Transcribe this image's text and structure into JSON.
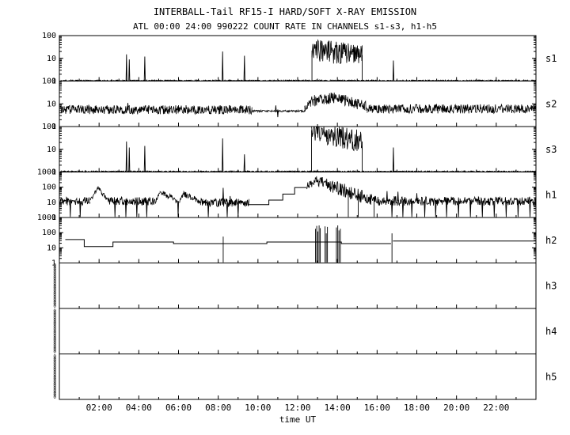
{
  "title": "INTERBALL-Tail RF15-I HARD/SOFT X-RAY EMISSION",
  "subtitle": "ATL 00:00 24:00 990222  COUNT RATE IN CHANNELS s1-s3, h1-h5",
  "xlabel": "time UT",
  "chart_data": {
    "type": "line",
    "x_range_hours": [
      0,
      24
    ],
    "x_tick_hours": [
      2,
      4,
      6,
      8,
      10,
      12,
      14,
      16,
      18,
      20,
      22
    ],
    "x_tick_labels": [
      "02:00",
      "04:00",
      "06:00",
      "08:00",
      "10:00",
      "12:00",
      "14:00",
      "16:00",
      "18:00",
      "20:00",
      "22:00"
    ],
    "grid": false,
    "legend": "channel labels on right side",
    "panels": [
      {
        "id": "s1",
        "label": "s1",
        "ylim": [
          1,
          100
        ],
        "yticks": [
          100,
          10,
          1
        ],
        "elements": [
          {
            "type": "noisy",
            "t0": 0.05,
            "t1": 24,
            "level": 1.05,
            "dex": 0.03
          },
          {
            "type": "spike",
            "t": 3.38,
            "base": 1.05,
            "peak": 15
          },
          {
            "type": "spike",
            "t": 3.52,
            "base": 1.05,
            "peak": 9
          },
          {
            "type": "spike",
            "t": 4.3,
            "base": 1.05,
            "peak": 12
          },
          {
            "type": "spike",
            "t": 8.22,
            "base": 1.05,
            "peak": 20
          },
          {
            "type": "spike",
            "t": 9.32,
            "base": 1.05,
            "peak": 13
          },
          {
            "type": "vline",
            "t": 12.72,
            "y0": 1.05,
            "y1": 22
          },
          {
            "type": "ramp",
            "t0": 12.72,
            "t1": 15.25,
            "y0": 22,
            "y1": 14,
            "dex": 0.5
          },
          {
            "type": "vline",
            "t": 15.25,
            "y0": 1.05,
            "y1": 14
          },
          {
            "type": "spike",
            "t": 16.82,
            "base": 1.05,
            "peak": 8
          }
        ]
      },
      {
        "id": "s2",
        "label": "s2",
        "ylim": [
          1,
          100
        ],
        "yticks": [
          100,
          10,
          1
        ],
        "elements": [
          {
            "type": "noisy",
            "t0": 0,
            "t1": 9.7,
            "level": 5.5,
            "dex": 0.2
          },
          {
            "type": "spike",
            "t": 3.45,
            "base": 5.5,
            "peak": 11
          },
          {
            "type": "noisy",
            "t0": 9.7,
            "t1": 12.35,
            "level": 4.8,
            "dex": 0.04
          },
          {
            "type": "spike",
            "t": 10.9,
            "base": 4.8,
            "peak": 8.5
          },
          {
            "type": "spike",
            "t": 11.0,
            "base": 4.8,
            "peak": 2.6
          },
          {
            "type": "ramp",
            "t0": 12.35,
            "t1": 12.65,
            "y0": 6,
            "y1": 13,
            "dex": 0.15
          },
          {
            "type": "ramp",
            "t0": 12.65,
            "t1": 13.9,
            "y0": 13,
            "y1": 19,
            "dex": 0.25
          },
          {
            "type": "ramp",
            "t0": 13.9,
            "t1": 15.5,
            "y0": 19,
            "y1": 7,
            "dex": 0.25
          },
          {
            "type": "noisy",
            "t0": 15.5,
            "t1": 24,
            "level": 6,
            "dex": 0.2
          }
        ]
      },
      {
        "id": "s3",
        "label": "s3",
        "ylim": [
          1,
          100
        ],
        "yticks": [
          100,
          10,
          1
        ],
        "elements": [
          {
            "type": "noisy",
            "t0": 0.05,
            "t1": 24,
            "level": 1.05,
            "dex": 0.03
          },
          {
            "type": "spike",
            "t": 3.38,
            "base": 1.05,
            "peak": 22
          },
          {
            "type": "spike",
            "t": 3.52,
            "base": 1.05,
            "peak": 12
          },
          {
            "type": "spike",
            "t": 4.3,
            "base": 1.05,
            "peak": 14
          },
          {
            "type": "spike",
            "t": 8.22,
            "base": 1.05,
            "peak": 30
          },
          {
            "type": "spike",
            "t": 9.32,
            "base": 1.05,
            "peak": 6
          },
          {
            "type": "vline",
            "t": 12.7,
            "y0": 1.05,
            "y1": 70
          },
          {
            "type": "ramp",
            "t0": 12.7,
            "t1": 13.5,
            "y0": 70,
            "y1": 40,
            "dex": 0.45
          },
          {
            "type": "ramp",
            "t0": 13.5,
            "t1": 15.25,
            "y0": 40,
            "y1": 22,
            "dex": 0.5
          },
          {
            "type": "vline",
            "t": 15.25,
            "y0": 1.05,
            "y1": 22
          },
          {
            "type": "spike",
            "t": 16.82,
            "base": 1.05,
            "peak": 12
          }
        ]
      },
      {
        "id": "h1",
        "label": "h1",
        "ylim": [
          1,
          1000
        ],
        "yticks": [
          1000,
          100,
          10,
          1
        ],
        "elements": [
          {
            "type": "noisy",
            "t0": 0,
            "t1": 1.55,
            "level": 12,
            "dex": 0.28
          },
          {
            "type": "spike",
            "t": 0.55,
            "base": 12,
            "peak": 1.1
          },
          {
            "type": "spike",
            "t": 1.05,
            "base": 12,
            "peak": 1.1
          },
          {
            "type": "ramp",
            "t0": 1.55,
            "t1": 1.95,
            "y0": 14,
            "y1": 95,
            "dex": 0.15
          },
          {
            "type": "ramp",
            "t0": 1.95,
            "t1": 2.45,
            "y0": 95,
            "y1": 14,
            "dex": 0.2
          },
          {
            "type": "noisy",
            "t0": 2.45,
            "t1": 4.85,
            "level": 12,
            "dex": 0.28
          },
          {
            "type": "spike",
            "t": 2.8,
            "base": 12,
            "peak": 1.1
          },
          {
            "type": "spike",
            "t": 3.35,
            "base": 12,
            "peak": 1.1
          },
          {
            "type": "spike",
            "t": 3.9,
            "base": 12,
            "peak": 1.1
          },
          {
            "type": "spike",
            "t": 4.4,
            "base": 12,
            "peak": 1.1
          },
          {
            "type": "ramp",
            "t0": 4.85,
            "t1": 5.05,
            "y0": 12,
            "y1": 48,
            "dex": 0.12
          },
          {
            "type": "ramp",
            "t0": 5.05,
            "t1": 5.95,
            "y0": 48,
            "y1": 13,
            "dex": 0.2
          },
          {
            "type": "spike",
            "t": 5.98,
            "base": 12,
            "peak": 1.1
          },
          {
            "type": "ramp",
            "t0": 6.05,
            "t1": 6.25,
            "y0": 12,
            "y1": 36,
            "dex": 0.12
          },
          {
            "type": "ramp",
            "t0": 6.25,
            "t1": 7.1,
            "y0": 36,
            "y1": 11,
            "dex": 0.2
          },
          {
            "type": "noisy",
            "t0": 7.1,
            "t1": 9.55,
            "level": 9.5,
            "dex": 0.28
          },
          {
            "type": "spike",
            "t": 7.5,
            "base": 9.5,
            "peak": 1.1
          },
          {
            "type": "spike",
            "t": 8.25,
            "base": 9.5,
            "peak": 90
          },
          {
            "type": "spike",
            "t": 8.45,
            "base": 9.5,
            "peak": 1.1
          },
          {
            "type": "spike",
            "t": 8.6,
            "base": 9.5,
            "peak": 26
          },
          {
            "type": "spike",
            "t": 9.0,
            "base": 9.5,
            "peak": 1.1
          },
          {
            "type": "line",
            "pts": [
              [
                9.55,
                7
              ],
              [
                10.55,
                7
              ],
              [
                10.55,
                14
              ],
              [
                11.25,
                14
              ],
              [
                11.25,
                35
              ],
              [
                11.85,
                35
              ],
              [
                11.85,
                95
              ],
              [
                12.45,
                95
              ]
            ]
          },
          {
            "type": "ramp",
            "t0": 12.45,
            "t1": 12.95,
            "y0": 110,
            "y1": 280,
            "dex": 0.25
          },
          {
            "type": "ramp",
            "t0": 12.95,
            "t1": 13.6,
            "y0": 280,
            "y1": 150,
            "dex": 0.35
          },
          {
            "type": "ramp",
            "t0": 13.6,
            "t1": 14.6,
            "y0": 150,
            "y1": 45,
            "dex": 0.45
          },
          {
            "type": "vline",
            "t": 14.55,
            "y0": 1.1,
            "y1": 70
          },
          {
            "type": "ramp",
            "t0": 14.6,
            "t1": 15.5,
            "y0": 45,
            "y1": 18,
            "dex": 0.45
          },
          {
            "type": "vline",
            "t": 15.05,
            "y0": 1.1,
            "y1": 35
          },
          {
            "type": "ramp",
            "t0": 15.5,
            "t1": 16.1,
            "y0": 18,
            "y1": 12,
            "dex": 0.4
          },
          {
            "type": "vline",
            "t": 15.85,
            "y0": 1.1,
            "y1": 22
          },
          {
            "type": "noisy",
            "t0": 16.1,
            "t1": 24,
            "level": 12,
            "dex": 0.3
          },
          {
            "type": "spike",
            "t": 16.5,
            "base": 12,
            "peak": 55
          },
          {
            "type": "spike",
            "t": 16.75,
            "base": 12,
            "peak": 1.1
          },
          {
            "type": "spike",
            "t": 17.05,
            "base": 12,
            "peak": 50
          },
          {
            "type": "spike",
            "t": 17.3,
            "base": 12,
            "peak": 1.1
          },
          {
            "type": "spike",
            "t": 17.75,
            "base": 12,
            "peak": 1.1
          },
          {
            "type": "spike",
            "t": 18.0,
            "base": 12,
            "peak": 40
          },
          {
            "type": "spike",
            "t": 18.4,
            "base": 12,
            "peak": 1.1
          },
          {
            "type": "spike",
            "t": 18.95,
            "base": 12,
            "peak": 1.1
          },
          {
            "type": "spike",
            "t": 19.5,
            "base": 12,
            "peak": 1.1
          },
          {
            "type": "spike",
            "t": 20.1,
            "base": 12,
            "peak": 1.1
          },
          {
            "type": "spike",
            "t": 20.7,
            "base": 12,
            "peak": 1.1
          },
          {
            "type": "spike",
            "t": 21.3,
            "base": 12,
            "peak": 1.1
          },
          {
            "type": "spike",
            "t": 21.9,
            "base": 12,
            "peak": 1.1
          },
          {
            "type": "spike",
            "t": 22.5,
            "base": 12,
            "peak": 1.1
          },
          {
            "type": "spike",
            "t": 23.1,
            "base": 12,
            "peak": 1.1
          },
          {
            "type": "spike",
            "t": 23.7,
            "base": 12,
            "peak": 1.1
          }
        ]
      },
      {
        "id": "h2",
        "label": "h2",
        "ylim": [
          1,
          1000
        ],
        "yticks": [
          1000,
          100,
          10,
          1
        ],
        "elements": [
          {
            "type": "line",
            "pts": [
              [
                0.3,
                35
              ],
              [
                1.25,
                35
              ],
              [
                1.25,
                12
              ],
              [
                2.7,
                12
              ],
              [
                2.7,
                24
              ],
              [
                5.75,
                24
              ],
              [
                5.75,
                19
              ],
              [
                10.45,
                19
              ],
              [
                10.45,
                24
              ],
              [
                14.2,
                24
              ],
              [
                14.2,
                19
              ],
              [
                16.7,
                19
              ]
            ]
          },
          {
            "type": "vline",
            "t": 8.25,
            "y0": 1.1,
            "y1": 55
          },
          {
            "type": "vline",
            "t": 12.9,
            "y0": 1.1,
            "y1": 180
          },
          {
            "type": "vline",
            "t": 12.96,
            "y0": 1.1,
            "y1": 280
          },
          {
            "type": "vline",
            "t": 13.02,
            "y0": 1.1,
            "y1": 120
          },
          {
            "type": "vline",
            "t": 13.08,
            "y0": 1.1,
            "y1": 300
          },
          {
            "type": "vline",
            "t": 13.14,
            "y0": 1.1,
            "y1": 200
          },
          {
            "type": "vline",
            "t": 13.38,
            "y0": 1.1,
            "y1": 260
          },
          {
            "type": "vline",
            "t": 13.44,
            "y0": 1.1,
            "y1": 90
          },
          {
            "type": "vline",
            "t": 13.5,
            "y0": 1.1,
            "y1": 240
          },
          {
            "type": "vline",
            "t": 13.95,
            "y0": 1.1,
            "y1": 220
          },
          {
            "type": "vline",
            "t": 14.02,
            "y0": 1.1,
            "y1": 300
          },
          {
            "type": "vline",
            "t": 14.08,
            "y0": 1.1,
            "y1": 140
          },
          {
            "type": "vline",
            "t": 14.15,
            "y0": 1.1,
            "y1": 180
          },
          {
            "type": "vline",
            "t": 16.75,
            "y0": 1.1,
            "y1": 90
          },
          {
            "type": "line",
            "pts": [
              [
                16.8,
                28
              ],
              [
                24,
                28
              ]
            ]
          }
        ]
      },
      {
        "id": "h3",
        "label": "h3",
        "ylim": [
          1,
          10
        ],
        "yticks": [],
        "zero_label": "0",
        "zero_count": 19,
        "elements": []
      },
      {
        "id": "h4",
        "label": "h4",
        "ylim": [
          1,
          10
        ],
        "yticks": [],
        "zero_label": "0",
        "zero_count": 19,
        "elements": []
      },
      {
        "id": "h5",
        "label": "h5",
        "ylim": [
          1,
          10
        ],
        "yticks": [],
        "zero_label": "0",
        "zero_count": 19,
        "elements": []
      }
    ]
  }
}
